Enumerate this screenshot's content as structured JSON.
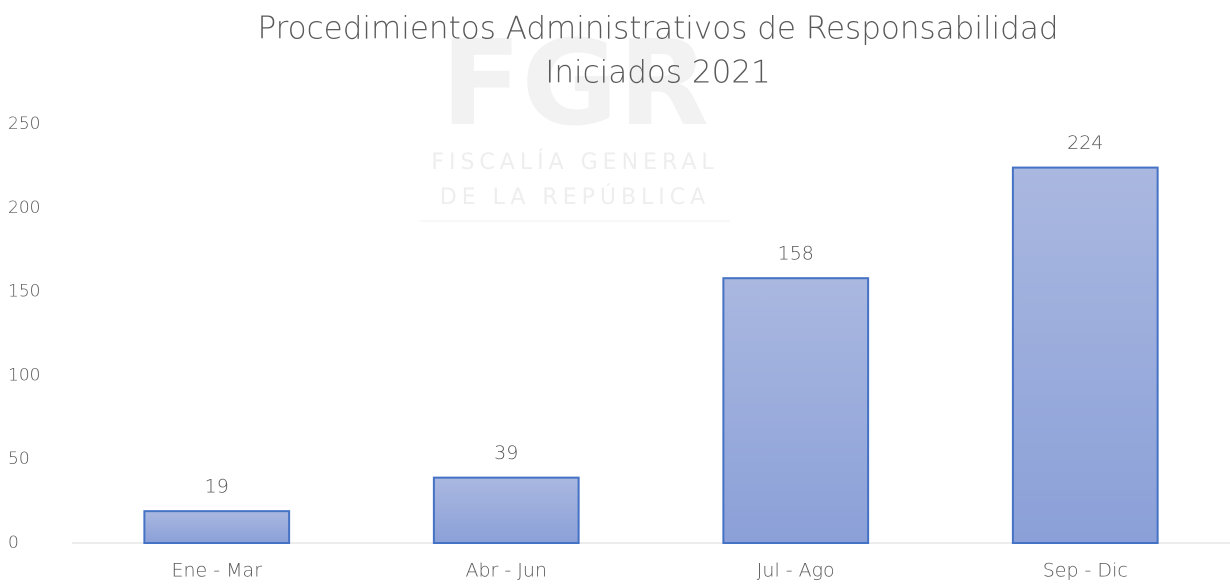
{
  "chart_data": {
    "type": "bar",
    "title": [
      "Procedimientos Administrativos de Responsabilidad",
      "Iniciados 2021"
    ],
    "watermark": [
      "FGR",
      "FISCALÍA GENERAL",
      "DE LA REPÚBLICA"
    ],
    "categories": [
      "Ene - Mar",
      "Abr - Jun",
      "Jul - Ago",
      "Sep - Dic"
    ],
    "values": [
      19,
      39,
      158,
      224
    ],
    "color": "#4472c4",
    "ylim": [
      0,
      250
    ],
    "yticks": [
      0,
      50,
      100,
      150,
      200,
      250
    ],
    "grid": false
  }
}
